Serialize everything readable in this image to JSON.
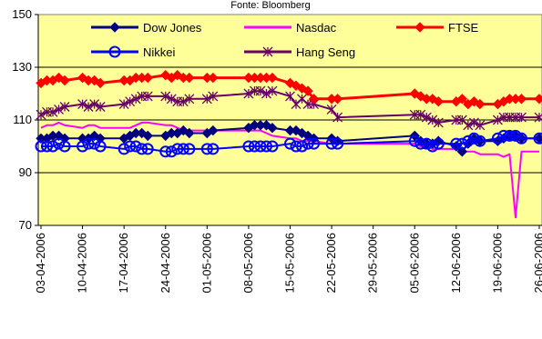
{
  "chart_data": {
    "type": "line",
    "title": "Fonte: Bloomberg",
    "xlabel": "",
    "ylabel": "",
    "ylim": [
      70,
      150
    ],
    "yticks": [
      70,
      90,
      110,
      130,
      150
    ],
    "xticks": [
      "03-04-2006",
      "10-04-2006",
      "17-04-2006",
      "24-04-2006",
      "01-05-2006",
      "08-05-2006",
      "15-05-2006",
      "22-05-2006",
      "29-05-2006",
      "05-06-2006",
      "12-06-2006",
      "19-06-2006",
      "26-06-2006"
    ],
    "xlim": [
      "2006-04-03",
      "2006-06-26"
    ],
    "plot_background": "#FFFF99",
    "grid": true,
    "legend_position": "top",
    "series": [
      {
        "name": "Dow Jones",
        "color": "#000080",
        "marker": "diamond",
        "x": [
          "2006-04-03",
          "2006-04-04",
          "2006-04-05",
          "2006-04-06",
          "2006-04-07",
          "2006-04-10",
          "2006-04-11",
          "2006-04-12",
          "2006-04-13",
          "2006-04-17",
          "2006-04-18",
          "2006-04-19",
          "2006-04-20",
          "2006-04-21",
          "2006-04-24",
          "2006-04-25",
          "2006-04-26",
          "2006-04-27",
          "2006-04-28",
          "2006-05-01",
          "2006-05-02",
          "2006-05-08",
          "2006-05-09",
          "2006-05-10",
          "2006-05-11",
          "2006-05-12",
          "2006-05-15",
          "2006-05-16",
          "2006-05-17",
          "2006-05-18",
          "2006-05-19",
          "2006-05-22",
          "2006-05-23",
          "2006-06-05",
          "2006-06-06",
          "2006-06-07",
          "2006-06-08",
          "2006-06-09",
          "2006-06-12",
          "2006-06-13",
          "2006-06-14",
          "2006-06-15",
          "2006-06-16",
          "2006-06-19",
          "2006-06-20",
          "2006-06-21",
          "2006-06-22",
          "2006-06-23",
          "2006-06-26"
        ],
        "values": [
          103,
          103,
          104,
          104,
          103,
          103,
          103,
          104,
          103,
          103,
          104,
          105,
          105,
          104,
          104,
          105,
          105,
          106,
          105,
          105,
          106,
          107,
          108,
          108,
          108,
          107,
          106,
          106,
          105,
          104,
          103,
          103,
          102,
          104,
          102,
          101,
          101,
          102,
          100,
          98,
          101,
          103,
          102,
          102,
          103,
          104,
          104,
          103,
          103
        ]
      },
      {
        "name": "Nasdac",
        "color": "#FF00FF",
        "marker": "none",
        "x": [
          "2006-04-03",
          "2006-04-04",
          "2006-04-05",
          "2006-04-06",
          "2006-04-07",
          "2006-04-10",
          "2006-04-11",
          "2006-04-12",
          "2006-04-13",
          "2006-04-17",
          "2006-04-18",
          "2006-04-19",
          "2006-04-20",
          "2006-04-21",
          "2006-04-24",
          "2006-04-25",
          "2006-04-26",
          "2006-04-27",
          "2006-04-28",
          "2006-05-01",
          "2006-05-02",
          "2006-05-08",
          "2006-05-09",
          "2006-05-10",
          "2006-05-11",
          "2006-05-12",
          "2006-05-15",
          "2006-05-16",
          "2006-05-17",
          "2006-05-18",
          "2006-05-19",
          "2006-05-22",
          "2006-05-23",
          "2006-06-05",
          "2006-06-06",
          "2006-06-07",
          "2006-06-08",
          "2006-06-09",
          "2006-06-12",
          "2006-06-13",
          "2006-06-14",
          "2006-06-15",
          "2006-06-16",
          "2006-06-19",
          "2006-06-20",
          "2006-06-21",
          "2006-06-22",
          "2006-06-23",
          "2006-06-26"
        ],
        "values": [
          107,
          108,
          108,
          109,
          108,
          107,
          108,
          108,
          107,
          107,
          107,
          108,
          109,
          109,
          108,
          108,
          107,
          106,
          106,
          106,
          106,
          106,
          106,
          106,
          105,
          104,
          103,
          103,
          102,
          102,
          102,
          101,
          101,
          101,
          100,
          100,
          99,
          99,
          99,
          98,
          98,
          98,
          97,
          97,
          96,
          97,
          73,
          98,
          98
        ]
      },
      {
        "name": "FTSE",
        "color": "#FF0000",
        "marker": "diamond",
        "x": [
          "2006-04-03",
          "2006-04-04",
          "2006-04-05",
          "2006-04-06",
          "2006-04-07",
          "2006-04-10",
          "2006-04-11",
          "2006-04-12",
          "2006-04-13",
          "2006-04-17",
          "2006-04-18",
          "2006-04-19",
          "2006-04-20",
          "2006-04-21",
          "2006-04-24",
          "2006-04-25",
          "2006-04-26",
          "2006-04-27",
          "2006-04-28",
          "2006-05-01",
          "2006-05-02",
          "2006-05-08",
          "2006-05-09",
          "2006-05-10",
          "2006-05-11",
          "2006-05-12",
          "2006-05-15",
          "2006-05-16",
          "2006-05-17",
          "2006-05-18",
          "2006-05-19",
          "2006-05-22",
          "2006-05-23",
          "2006-06-05",
          "2006-06-06",
          "2006-06-07",
          "2006-06-08",
          "2006-06-09",
          "2006-06-12",
          "2006-06-13",
          "2006-06-14",
          "2006-06-15",
          "2006-06-16",
          "2006-06-19",
          "2006-06-20",
          "2006-06-21",
          "2006-06-22",
          "2006-06-23",
          "2006-06-26"
        ],
        "values": [
          124,
          125,
          125,
          126,
          125,
          126,
          125,
          125,
          124,
          125,
          125,
          126,
          126,
          126,
          127,
          126,
          127,
          126,
          126,
          126,
          126,
          126,
          126,
          126,
          126,
          126,
          124,
          123,
          122,
          121,
          118,
          118,
          118,
          120,
          119,
          118,
          118,
          117,
          117,
          118,
          116,
          117,
          116,
          116,
          117,
          118,
          118,
          118,
          118
        ]
      },
      {
        "name": "Nikkei",
        "color": "#0000FF",
        "marker": "circle",
        "x": [
          "2006-04-03",
          "2006-04-04",
          "2006-04-05",
          "2006-04-06",
          "2006-04-07",
          "2006-04-10",
          "2006-04-11",
          "2006-04-12",
          "2006-04-13",
          "2006-04-17",
          "2006-04-18",
          "2006-04-19",
          "2006-04-20",
          "2006-04-21",
          "2006-04-24",
          "2006-04-25",
          "2006-04-26",
          "2006-04-27",
          "2006-04-28",
          "2006-05-01",
          "2006-05-02",
          "2006-05-08",
          "2006-05-09",
          "2006-05-10",
          "2006-05-11",
          "2006-05-12",
          "2006-05-15",
          "2006-05-16",
          "2006-05-17",
          "2006-05-18",
          "2006-05-19",
          "2006-05-22",
          "2006-05-23",
          "2006-06-05",
          "2006-06-06",
          "2006-06-07",
          "2006-06-08",
          "2006-06-09",
          "2006-06-12",
          "2006-06-13",
          "2006-06-14",
          "2006-06-15",
          "2006-06-16",
          "2006-06-19",
          "2006-06-20",
          "2006-06-21",
          "2006-06-22",
          "2006-06-23",
          "2006-06-26"
        ],
        "values": [
          100,
          100,
          100,
          101,
          100,
          100,
          101,
          101,
          100,
          99,
          100,
          100,
          99,
          99,
          98,
          98,
          99,
          99,
          99,
          99,
          99,
          100,
          100,
          100,
          100,
          100,
          101,
          100,
          100,
          101,
          101,
          101,
          101,
          102,
          101,
          101,
          100,
          101,
          101,
          101,
          102,
          103,
          102,
          103,
          104,
          104,
          104,
          103,
          103
        ]
      },
      {
        "name": "Hang Seng",
        "color": "#660066",
        "marker": "asterisk",
        "x": [
          "2006-04-03",
          "2006-04-04",
          "2006-04-05",
          "2006-04-06",
          "2006-04-07",
          "2006-04-10",
          "2006-04-11",
          "2006-04-12",
          "2006-04-13",
          "2006-04-17",
          "2006-04-18",
          "2006-04-19",
          "2006-04-20",
          "2006-04-21",
          "2006-04-24",
          "2006-04-25",
          "2006-04-26",
          "2006-04-27",
          "2006-04-28",
          "2006-05-01",
          "2006-05-02",
          "2006-05-08",
          "2006-05-09",
          "2006-05-10",
          "2006-05-11",
          "2006-05-12",
          "2006-05-15",
          "2006-05-16",
          "2006-05-17",
          "2006-05-18",
          "2006-05-19",
          "2006-05-22",
          "2006-05-23",
          "2006-06-05",
          "2006-06-06",
          "2006-06-07",
          "2006-06-08",
          "2006-06-09",
          "2006-06-12",
          "2006-06-13",
          "2006-06-14",
          "2006-06-15",
          "2006-06-16",
          "2006-06-19",
          "2006-06-20",
          "2006-06-21",
          "2006-06-22",
          "2006-06-23",
          "2006-06-26"
        ],
        "values": [
          112,
          113,
          113,
          114,
          115,
          116,
          115,
          116,
          115,
          116,
          117,
          118,
          119,
          119,
          119,
          118,
          117,
          117,
          118,
          118,
          119,
          120,
          121,
          121,
          120,
          121,
          119,
          116,
          118,
          116,
          116,
          114,
          111,
          112,
          112,
          111,
          110,
          109,
          110,
          110,
          108,
          109,
          108,
          110,
          111,
          111,
          111,
          111,
          111
        ]
      }
    ]
  }
}
